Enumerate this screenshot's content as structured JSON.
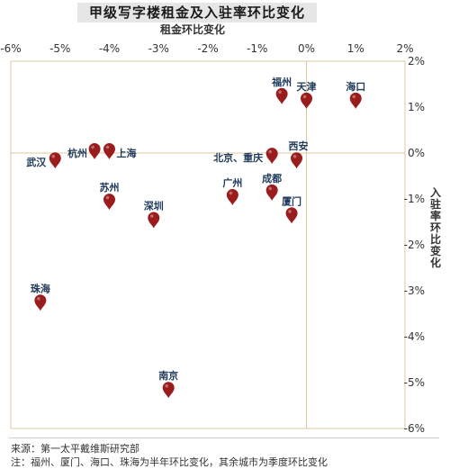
{
  "chart_data": {
    "type": "scatter",
    "title": "甲级写字楼租金及入驻率环比变化",
    "xlabel": "租金环比变化",
    "ylabel": "入驻率环比变化",
    "xlim": [
      -6,
      2
    ],
    "ylim": [
      -6,
      2
    ],
    "x_ticks": [
      -6,
      -5,
      -4,
      -3,
      -2,
      -1,
      0,
      1,
      2
    ],
    "y_ticks": [
      2,
      1,
      0,
      -1,
      -2,
      -3,
      -4,
      -5,
      -6
    ],
    "tick_suffix": "%",
    "grid": false,
    "marker_color": "#9b1c1c",
    "label_color": "#1f3a5a",
    "axis_color": "#e0c9a0",
    "points": [
      {
        "name": "福州",
        "x": -0.5,
        "y": 1.2
      },
      {
        "name": "天津",
        "x": 0.0,
        "y": 1.1
      },
      {
        "name": "海口",
        "x": 1.0,
        "y": 1.1
      },
      {
        "name": "北京、重庆",
        "x": -0.7,
        "y": -0.1
      },
      {
        "name": "西安",
        "x": -0.2,
        "y": -0.2
      },
      {
        "name": "武汉",
        "x": -5.1,
        "y": -0.2
      },
      {
        "name": "杭州",
        "x": -4.3,
        "y": 0.0
      },
      {
        "name": "上海",
        "x": -4.0,
        "y": 0.0
      },
      {
        "name": "苏州",
        "x": -4.0,
        "y": -1.1
      },
      {
        "name": "广州",
        "x": -1.5,
        "y": -1.0
      },
      {
        "name": "成都",
        "x": -0.7,
        "y": -0.9
      },
      {
        "name": "厦门",
        "x": -0.3,
        "y": -1.4
      },
      {
        "name": "深圳",
        "x": -3.1,
        "y": -1.5
      },
      {
        "name": "珠海",
        "x": -5.4,
        "y": -3.3
      },
      {
        "name": "南京",
        "x": -2.8,
        "y": -5.2
      }
    ]
  },
  "footer": {
    "source": "来源：第一太平戴维斯研究部",
    "note": "注：福州、厦门、海口、珠海为半年环比变化，其余城市为季度环比变化"
  }
}
